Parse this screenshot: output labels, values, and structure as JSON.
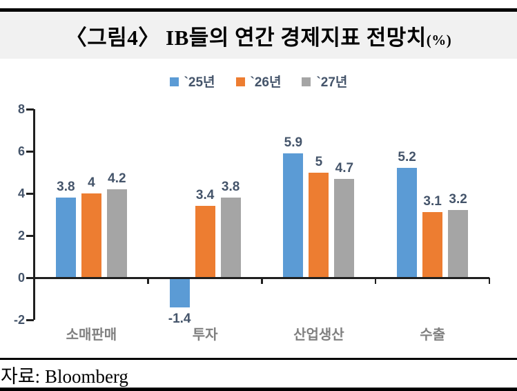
{
  "title": {
    "main": "〈그림4〉 IB들의 연간 경제지표 전망치",
    "unit": "(%)"
  },
  "legend": {
    "items": [
      {
        "label": "`25년",
        "color": "#5B9BD5"
      },
      {
        "label": "`26년",
        "color": "#ED7D31"
      },
      {
        "label": "`27년",
        "color": "#A5A5A5"
      }
    ]
  },
  "source": {
    "label": "자료:",
    "value": "Bloomberg"
  },
  "chart_data": {
    "type": "bar",
    "title": "〈그림4〉 IB들의 연간 경제지표 전망치(%)",
    "categories": [
      "소매판매",
      "투자",
      "산업생산",
      "수출"
    ],
    "series": [
      {
        "name": "`25년",
        "color": "#5B9BD5",
        "values": [
          3.8,
          -1.4,
          5.9,
          5.2
        ]
      },
      {
        "name": "`26년",
        "color": "#ED7D31",
        "values": [
          4,
          3.4,
          5,
          3.1
        ]
      },
      {
        "name": "`27년",
        "color": "#A5A5A5",
        "values": [
          4.2,
          3.8,
          4.7,
          3.2
        ]
      }
    ],
    "xlabel": "",
    "ylabel": "",
    "ylim": [
      -2,
      8
    ],
    "yticks": [
      8,
      6,
      4,
      2,
      0,
      -2
    ],
    "grid": false,
    "legend_position": "top",
    "data_labels": true,
    "colors": {
      "data_label": "#44546A",
      "axis_label": "#44546A",
      "category_label": "#808080",
      "axis_line": "#1f1f1f"
    }
  }
}
